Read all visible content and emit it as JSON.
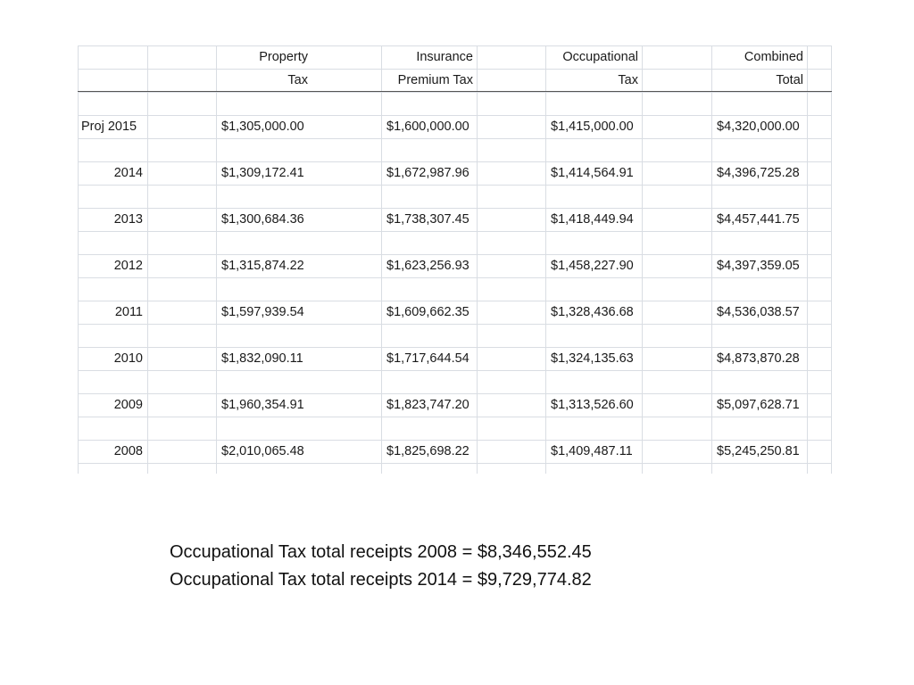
{
  "table": {
    "headers": [
      {
        "line1": "",
        "line2": ""
      },
      {
        "line1": "Property",
        "line2": "Tax"
      },
      {
        "line1": "Insurance",
        "line2": "Premium Tax"
      },
      {
        "line1": "Occupational",
        "line2": "Tax"
      },
      {
        "line1": "Combined",
        "line2": "Total"
      }
    ],
    "rows": [
      {
        "year": "Proj 2015",
        "property": "$1,305,000.00",
        "insurance": "$1,600,000.00",
        "occupational": "$1,415,000.00",
        "total": "$4,320,000.00"
      },
      {
        "year": "2014",
        "property": "$1,309,172.41",
        "insurance": "$1,672,987.96",
        "occupational": "$1,414,564.91",
        "total": "$4,396,725.28"
      },
      {
        "year": "2013",
        "property": "$1,300,684.36",
        "insurance": "$1,738,307.45",
        "occupational": "$1,418,449.94",
        "total": "$4,457,441.75"
      },
      {
        "year": "2012",
        "property": "$1,315,874.22",
        "insurance": "$1,623,256.93",
        "occupational": "$1,458,227.90",
        "total": "$4,397,359.05"
      },
      {
        "year": "2011",
        "property": "$1,597,939.54",
        "insurance": "$1,609,662.35",
        "occupational": "$1,328,436.68",
        "total": "$4,536,038.57"
      },
      {
        "year": "2010",
        "property": "$1,832,090.11",
        "insurance": "$1,717,644.54",
        "occupational": "$1,324,135.63",
        "total": "$4,873,870.28"
      },
      {
        "year": "2009",
        "property": "$1,960,354.91",
        "insurance": "$1,823,747.20",
        "occupational": "$1,313,526.60",
        "total": "$5,097,628.71"
      },
      {
        "year": "2008",
        "property": "$2,010,065.48",
        "insurance": "$1,825,698.22",
        "occupational": "$1,409,487.11",
        "total": "$5,245,250.81"
      }
    ]
  },
  "notes": [
    "Occupational Tax total receipts 2008 = $8,346,552.45",
    "Occupational Tax total receipts 2014 = $9,729,774.82"
  ]
}
